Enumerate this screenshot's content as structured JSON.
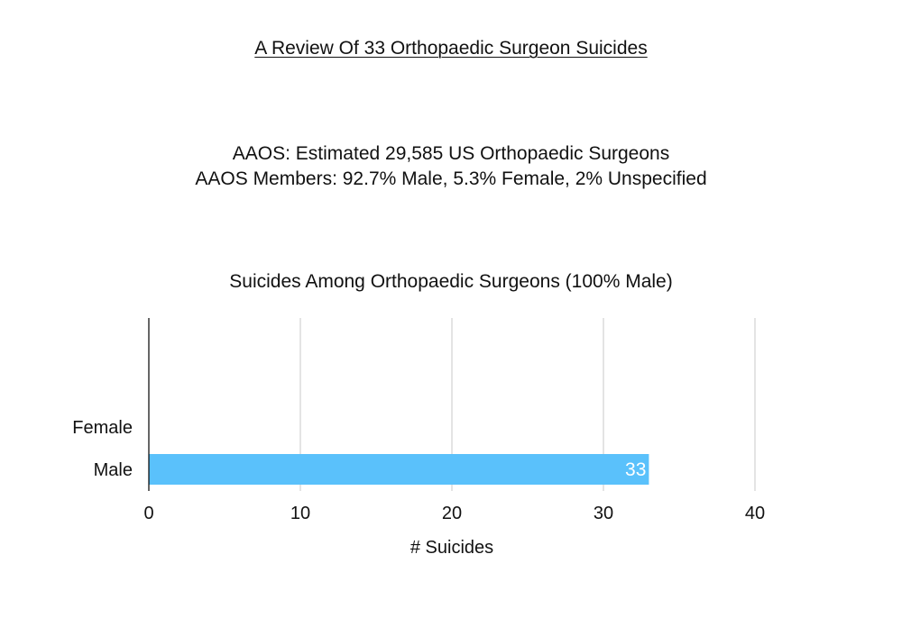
{
  "title": "A Review Of 33 Orthopaedic Surgeon Suicides",
  "stats": {
    "line1": "AAOS: Estimated 29,585 US Orthopaedic Surgeons",
    "line2": "AAOS Members: 92.7% Male, 5.3% Female, 2% Unspecified"
  },
  "chart_data": {
    "type": "bar",
    "orientation": "horizontal",
    "title": "Suicides Among Orthopaedic Surgeons (100% Male)",
    "categories": [
      "Female",
      "Male"
    ],
    "values": [
      0,
      33
    ],
    "data_labels": [
      "",
      "33"
    ],
    "xlabel": "# Suicides",
    "ylabel": "",
    "xlim": [
      0,
      40
    ],
    "xticks": [
      0,
      10,
      20,
      30,
      40
    ],
    "grid": true,
    "legend": "none",
    "colors": {
      "bar": "#5ac1fb",
      "grid": "#c8c8c8",
      "axis": "#000000",
      "data_label": "#ffffff"
    }
  }
}
